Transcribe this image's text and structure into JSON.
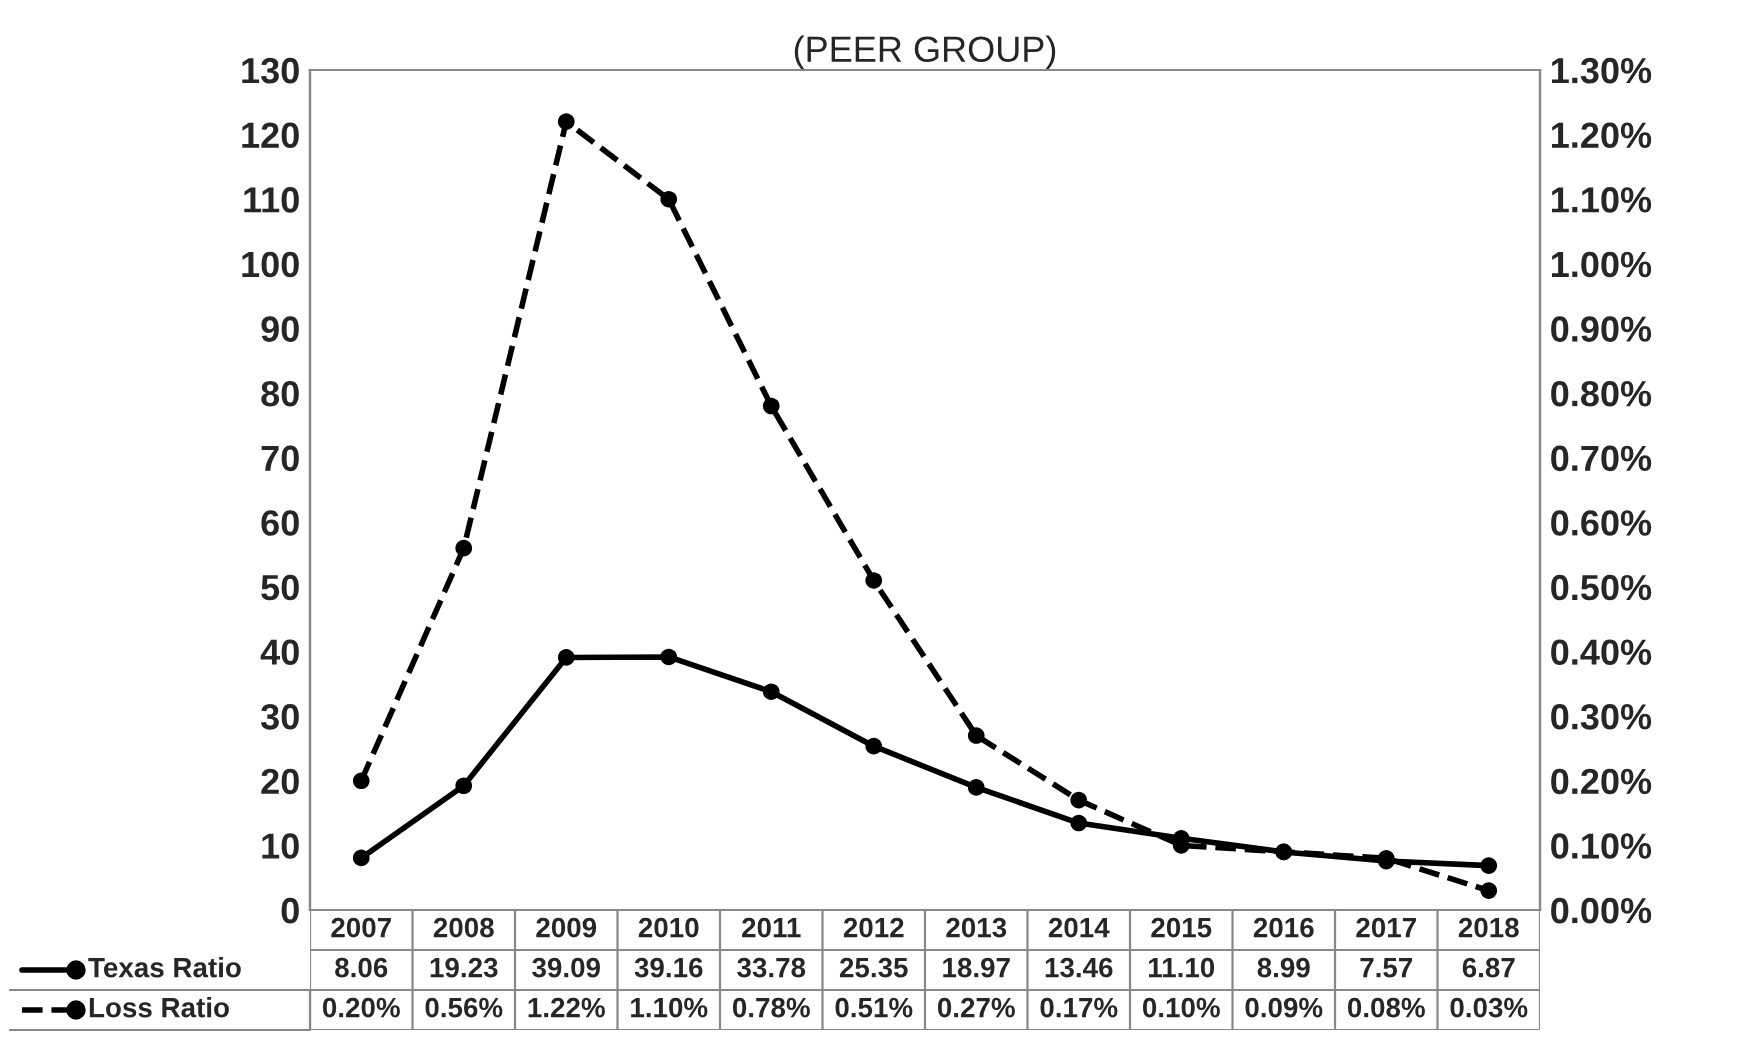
{
  "chart_data": {
    "type": "line",
    "title": "(PEER GROUP)",
    "categories": [
      "2007",
      "2008",
      "2009",
      "2010",
      "2011",
      "2012",
      "2013",
      "2014",
      "2015",
      "2016",
      "2017",
      "2018"
    ],
    "series": [
      {
        "name": "Texas Ratio",
        "color": "#000000",
        "line_style": "solid",
        "values": [
          8.06,
          19.23,
          39.09,
          39.16,
          33.78,
          25.35,
          18.97,
          13.46,
          11.1,
          8.99,
          7.57,
          6.87
        ],
        "value_labels": [
          "8.06",
          "19.23",
          "39.09",
          "39.16",
          "33.78",
          "25.35",
          "18.97",
          "13.46",
          "11.10",
          "8.99",
          "7.57",
          "6.87"
        ]
      },
      {
        "name": "Loss Ratio",
        "color": "#000000",
        "line_style": "dashed",
        "axis": "y2",
        "values": [
          0.2,
          0.56,
          1.22,
          1.1,
          0.78,
          0.51,
          0.27,
          0.17,
          0.1,
          0.09,
          0.08,
          0.03
        ],
        "value_labels": [
          "0.20%",
          "0.56%",
          "1.22%",
          "1.10%",
          "0.78%",
          "0.51%",
          "0.27%",
          "0.17%",
          "0.10%",
          "0.09%",
          "0.08%",
          "0.03%"
        ]
      }
    ],
    "ylim": [
      0,
      130
    ],
    "yticks": [
      0,
      10,
      20,
      30,
      40,
      50,
      60,
      70,
      80,
      90,
      100,
      110,
      120,
      130
    ],
    "y2lim": [
      0,
      1.3
    ],
    "y2ticks": [
      {
        "value": 0,
        "label": "0.00%"
      },
      {
        "value": 0.1,
        "label": "0.10%"
      },
      {
        "value": 0.2,
        "label": "0.20%"
      },
      {
        "value": 0.3,
        "label": "0.30%"
      },
      {
        "value": 0.4,
        "label": "0.40%"
      },
      {
        "value": 0.5,
        "label": "0.50%"
      },
      {
        "value": 0.6,
        "label": "0.60%"
      },
      {
        "value": 0.7,
        "label": "0.70%"
      },
      {
        "value": 0.8,
        "label": "0.80%"
      },
      {
        "value": 0.9,
        "label": "0.90%"
      },
      {
        "value": 1.0,
        "label": "1.00%"
      },
      {
        "value": 1.1,
        "label": "1.10%"
      },
      {
        "value": 1.2,
        "label": "1.20%"
      },
      {
        "value": 1.3,
        "label": "1.30%"
      }
    ],
    "marker": "circle",
    "grid": false,
    "legend": "bottom"
  }
}
